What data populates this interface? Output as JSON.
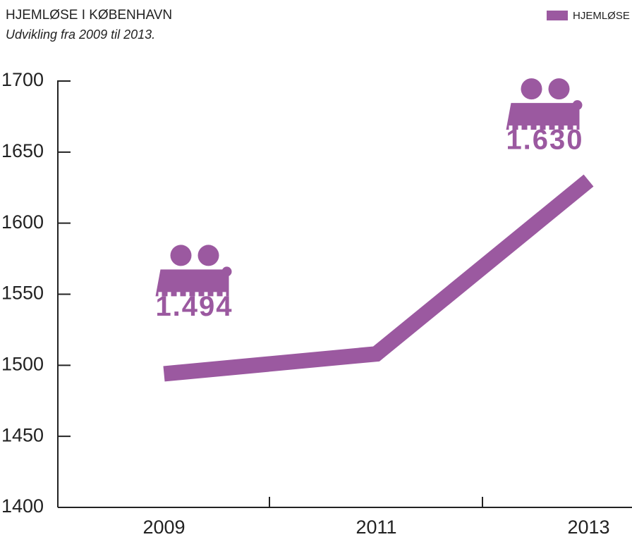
{
  "chart_data": {
    "type": "line",
    "title": "HJEMLØSE I KØBENHAVN",
    "subtitle": "Udvikling fra 2009 til 2013.",
    "categories": [
      "2009",
      "2011",
      "2013"
    ],
    "series": [
      {
        "name": "HJEMLØSE",
        "color": "#9b59a0",
        "values": [
          1494,
          1508,
          1630
        ],
        "value_labels": [
          "1.494",
          null,
          "1.630"
        ]
      }
    ],
    "ylim": [
      1400,
      1700
    ],
    "yticks": [
      1400,
      1450,
      1500,
      1550,
      1600,
      1650,
      1700
    ],
    "legend": "top-right"
  }
}
